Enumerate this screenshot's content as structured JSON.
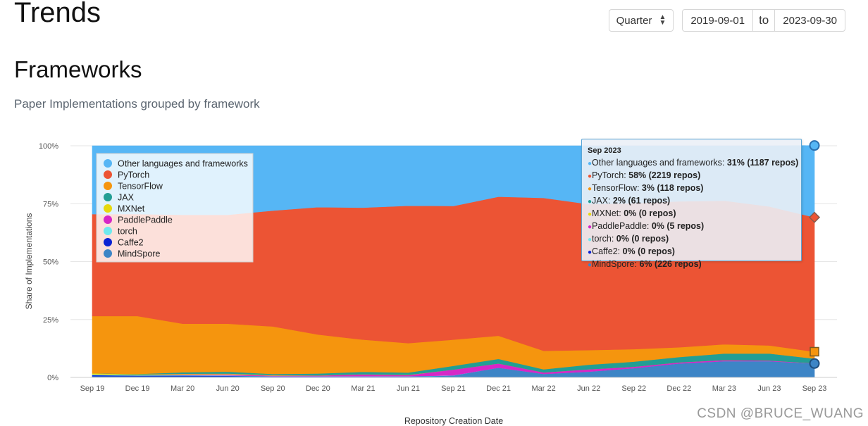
{
  "header": {
    "title": "Trends",
    "granularity": "Quarter",
    "date_from": "2019-09-01",
    "date_to_label": "to",
    "date_to": "2023-09-30"
  },
  "section": {
    "title": "Frameworks",
    "subtitle": "Paper Implementations grouped by framework"
  },
  "watermark": "CSDN @BRUCE_WUANG",
  "chart_data": {
    "type": "area",
    "stacked": true,
    "normalized": true,
    "x": [
      "Sep 19",
      "Dec 19",
      "Mar 20",
      "Jun 20",
      "Sep 20",
      "Dec 20",
      "Mar 21",
      "Jun 21",
      "Sep 21",
      "Dec 21",
      "Mar 22",
      "Jun 22",
      "Sep 22",
      "Dec 22",
      "Mar 23",
      "Jun 23",
      "Sep 23"
    ],
    "xlabel": "Repository Creation Date",
    "ylabel": "Share of Implementations",
    "yticks": [
      "0%",
      "25%",
      "50%",
      "75%",
      "100%"
    ],
    "ylim": [
      0,
      100
    ],
    "legend_position": "top-left",
    "series": [
      {
        "name": "MindSpore",
        "color": "#3d85c6",
        "values": [
          0.5,
          0.5,
          0.5,
          0.5,
          0.3,
          0.3,
          0.3,
          0.3,
          0.8,
          4.2,
          1.5,
          2.5,
          4,
          6,
          7,
          7,
          6
        ]
      },
      {
        "name": "Caffe2",
        "color": "#0b23d4",
        "values": [
          0.5,
          0.3,
          0.3,
          0.2,
          0.1,
          0.1,
          0.1,
          0.1,
          0,
          0,
          0,
          0,
          0,
          0,
          0,
          0,
          0
        ]
      },
      {
        "name": "torch",
        "color": "#6fe9ee",
        "values": [
          0.3,
          0.2,
          0.2,
          0.2,
          0.1,
          0.1,
          0.1,
          0.1,
          0.1,
          0,
          0,
          0,
          0,
          0,
          0,
          0,
          0
        ]
      },
      {
        "name": "PaddlePaddle",
        "color": "#d627c7",
        "values": [
          0,
          0,
          0.3,
          0.5,
          0.3,
          0.3,
          0.8,
          0.5,
          2.5,
          1.8,
          0.7,
          1,
          0.6,
          0.5,
          0.5,
          0.3,
          0.1
        ]
      },
      {
        "name": "MXNet",
        "color": "#e6d80e",
        "values": [
          0.5,
          0.3,
          0.3,
          0.3,
          0.2,
          0.1,
          0.1,
          0.1,
          0,
          0,
          0,
          0,
          0,
          0,
          0,
          0,
          0
        ]
      },
      {
        "name": "JAX",
        "color": "#229e94",
        "values": [
          0,
          0.2,
          0.6,
          0.8,
          0.5,
          0.8,
          1,
          1,
          1.6,
          2,
          1.3,
          2,
          2.2,
          2.3,
          2.8,
          3,
          2
        ]
      },
      {
        "name": "TensorFlow",
        "color": "#f5950e",
        "values": [
          24.7,
          25,
          21,
          20.7,
          20.5,
          16.8,
          13.9,
          12.7,
          11.3,
          10,
          8,
          6.3,
          5.4,
          4.2,
          4,
          3.5,
          3
        ]
      },
      {
        "name": "PyTorch",
        "color": "#ec5434",
        "values": [
          44,
          44,
          47,
          47,
          50,
          55,
          57,
          59.3,
          57.7,
          60,
          66,
          63,
          63,
          63,
          62,
          60,
          58
        ]
      },
      {
        "name": "Other languages and frameworks",
        "color": "#56b6f5",
        "values": [
          29.5,
          29.5,
          29.8,
          29.8,
          28,
          26.5,
          26.7,
          25.9,
          26,
          22,
          22.5,
          25.2,
          24.8,
          24,
          23.7,
          26.2,
          31
        ]
      }
    ],
    "tooltip": {
      "title": "Sep 2023",
      "rows": [
        {
          "name": "Other languages and frameworks",
          "value": "31% (1187 repos)",
          "color": "#56b6f5"
        },
        {
          "name": "PyTorch",
          "value": "58% (2219 repos)",
          "color": "#ec5434"
        },
        {
          "name": "TensorFlow",
          "value": "3% (118 repos)",
          "color": "#f5950e"
        },
        {
          "name": "JAX",
          "value": "2% (61 repos)",
          "color": "#229e94"
        },
        {
          "name": "MXNet",
          "value": "0% (0 repos)",
          "color": "#e6d80e"
        },
        {
          "name": "PaddlePaddle",
          "value": "0% (5 repos)",
          "color": "#d627c7"
        },
        {
          "name": "torch",
          "value": "0% (0 repos)",
          "color": "#6fe9ee"
        },
        {
          "name": "Caffe2",
          "value": "0% (0 repos)",
          "color": "#0b23d4"
        },
        {
          "name": "MindSpore",
          "value": "6% (226 repos)",
          "color": "#3d85c6"
        }
      ]
    },
    "legend_order": [
      "Other languages and frameworks",
      "PyTorch",
      "TensorFlow",
      "JAX",
      "MXNet",
      "PaddlePaddle",
      "torch",
      "Caffe2",
      "MindSpore"
    ]
  }
}
